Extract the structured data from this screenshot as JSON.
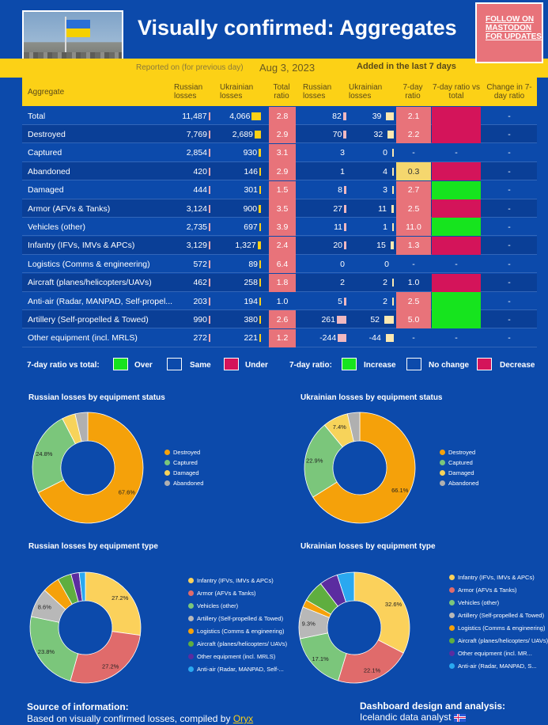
{
  "header": {
    "title": "Visually confirmed:  Aggregates",
    "follow_lines": [
      "FOLLOW ON",
      "MASTODON",
      "FOR UPDATES"
    ],
    "reported_label": "Reported on (for previous day)",
    "date": "Aug 3, 2023",
    "added_label": "Added in the last 7 days"
  },
  "table": {
    "headers": [
      "Aggregate",
      "Russian losses",
      "Ukrainian losses",
      "Total ratio",
      "Russian losses",
      "Ukrainian losses",
      "7-day ratio",
      "7-day ratio vs total",
      "Change in 7-day ratio"
    ],
    "rows": [
      {
        "name": "Total",
        "ru": "11,487",
        "ua": "4,066",
        "ratio": "2.8",
        "ru7": "82",
        "ua7": "39",
        "r7": "2.1",
        "vs": "under",
        "chg": "-",
        "r7c": "decrease",
        "uab": 0.72,
        "rub": 0.12,
        "ru7b": 0.35,
        "ua7b": 0.8
      },
      {
        "name": "Destroyed",
        "ru": "7,769",
        "ua": "2,689",
        "ratio": "2.9",
        "ru7": "70",
        "ua7": "32",
        "r7": "2.2",
        "vs": "under",
        "chg": "-",
        "r7c": "decrease",
        "uab": 0.5,
        "rub": 0.08,
        "ru7b": 0.3,
        "ua7b": 0.65
      },
      {
        "name": "Captured",
        "ru": "2,854",
        "ua": "930",
        "ratio": "3.1",
        "ru7": "3",
        "ua7": "0",
        "r7": "-",
        "vs": "none",
        "chg": "-",
        "r7c": "none",
        "uab": 0.18,
        "rub": 0.03,
        "ru7b": 0.0,
        "ua7b": 0.05
      },
      {
        "name": "Abandoned",
        "ru": "420",
        "ua": "146",
        "ratio": "2.9",
        "ru7": "1",
        "ua7": "4",
        "r7": "0.3",
        "vs": "under",
        "chg": "-",
        "r7c": "yellow",
        "uab": 0.03,
        "rub": 0.01,
        "ru7b": 0.0,
        "ua7b": 0.1
      },
      {
        "name": "Damaged",
        "ru": "444",
        "ua": "301",
        "ratio": "1.5",
        "ru7": "8",
        "ua7": "3",
        "r7": "2.7",
        "vs": "over",
        "chg": "-",
        "r7c": "decrease",
        "uab": 0.06,
        "rub": 0.01,
        "ru7b": 0.03,
        "ua7b": 0.08
      },
      {
        "name": "Armor (AFVs & Tanks)",
        "ru": "3,124",
        "ua": "900",
        "ratio": "3.5",
        "ru7": "27",
        "ua7": "11",
        "r7": "2.5",
        "vs": "under",
        "chg": "-",
        "r7c": "decrease",
        "uab": 0.18,
        "rub": 0.03,
        "ru7b": 0.1,
        "ua7b": 0.25
      },
      {
        "name": "Vehicles (other)",
        "ru": "2,735",
        "ua": "697",
        "ratio": "3.9",
        "ru7": "11",
        "ua7": "1",
        "r7": "11.0",
        "vs": "over",
        "chg": "-",
        "r7c": "decrease",
        "uab": 0.14,
        "rub": 0.03,
        "ru7b": 0.04,
        "ua7b": 0.03
      },
      {
        "name": "Infantry (IFVs, IMVs & APCs)",
        "ru": "3,129",
        "ua": "1,327",
        "ratio": "2.4",
        "ru7": "20",
        "ua7": "15",
        "r7": "1.3",
        "vs": "under",
        "chg": "-",
        "r7c": "decrease",
        "uab": 0.27,
        "rub": 0.03,
        "ru7b": 0.08,
        "ua7b": 0.35
      },
      {
        "name": "Logistics (Comms & engineering)",
        "ru": "572",
        "ua": "89",
        "ratio": "6.4",
        "ru7": "0",
        "ua7": "0",
        "r7": "-",
        "vs": "none",
        "chg": "-",
        "r7c": "none",
        "uab": 0.02,
        "rub": 0.01,
        "ru7b": 0.0,
        "ua7b": 0.0
      },
      {
        "name": "Aircraft (planes/helicopters/UAVs)",
        "ru": "462",
        "ua": "258",
        "ratio": "1.8",
        "ru7": "2",
        "ua7": "2",
        "r7": "1.0",
        "vs": "under",
        "chg": "-",
        "r7c": "none",
        "uab": 0.05,
        "rub": 0.01,
        "ru7b": 0.0,
        "ua7b": 0.05
      },
      {
        "name": "Anti-air (Radar, MANPAD, Self-propel...",
        "ru": "203",
        "ua": "194",
        "ratio": "1.0",
        "ru7": "5",
        "ua7": "2",
        "r7": "2.5",
        "vs": "over",
        "chg": "-",
        "r7c": "decrease",
        "uab": 0.04,
        "rub": 0.01,
        "ru7b": 0.02,
        "ua7b": 0.05
      },
      {
        "name": "Artillery (Self-propelled & Towed)",
        "ru": "990",
        "ua": "380",
        "ratio": "2.6",
        "ru7": "261",
        "ua7": "52",
        "r7": "5.0",
        "vs": "over",
        "chg": "-",
        "r7c": "decrease",
        "uab": 0.08,
        "rub": 0.02,
        "ru7b": 1.0,
        "ua7b": 1.0
      },
      {
        "name": "Other equipment (incl. MRLS)",
        "ru": "272",
        "ua": "221",
        "ratio": "1.2",
        "ru7": "-244",
        "ua7": "-44",
        "r7": "-",
        "vs": "none",
        "chg": "-",
        "r7c": "none",
        "uab": 0.05,
        "rub": 0.01,
        "ru7b": 0.9,
        "ua7b": 0.85
      }
    ]
  },
  "legend": {
    "label1": "7-day ratio vs total:",
    "over": "Over",
    "same": "Same",
    "under": "Under",
    "label2": "7-day ratio:",
    "increase": "Increase",
    "nochange": "No change",
    "decrease": "Decrease"
  },
  "colors": {
    "bg": "#0c4aab",
    "yellow": "#fcd116",
    "green": "#16e41e",
    "magenta": "#d4145a",
    "salmon": "#e8737a",
    "pale_yellow": "#f5d76e"
  },
  "chart_data": [
    {
      "type": "pie",
      "title": "Russian losses by equipment status",
      "categories": [
        "Destroyed",
        "Captured",
        "Damaged",
        "Abandoned"
      ],
      "values": [
        67.6,
        24.8,
        3.9,
        3.7
      ],
      "labels": [
        "67.6%",
        "24.8%",
        "",
        ""
      ],
      "colors": [
        "#f5a10a",
        "#7bc67b",
        "#f7d35a",
        "#b0b0b0"
      ]
    },
    {
      "type": "pie",
      "title": "Ukrainian losses by equipment status",
      "categories": [
        "Destroyed",
        "Captured",
        "Damaged",
        "Abandoned"
      ],
      "values": [
        66.1,
        22.9,
        7.4,
        3.6
      ],
      "labels": [
        "66.1%",
        "22.9%",
        "7.4%",
        ""
      ],
      "colors": [
        "#f5a10a",
        "#7bc67b",
        "#f7d35a",
        "#b0b0b0"
      ]
    },
    {
      "type": "pie",
      "title": "Russian losses by equipment type",
      "categories": [
        "Infantry (IFVs, IMVs & APCs)",
        "Armor (AFVs & Tanks)",
        "Vehicles (other)",
        "Artillery (Self-propelled & Towed)",
        "Logistics (Comms & engineering)",
        "Aircraft (planes/helicopters/ UAVs)",
        "Other equipment (incl. MRLS)",
        "Anti-air (Radar, MANPAD, Self-..."
      ],
      "values": [
        27.2,
        27.2,
        23.8,
        8.6,
        5.0,
        4.0,
        2.4,
        1.8
      ],
      "labels": [
        "27.2%",
        "27.2%",
        "23.8%",
        "8.6%",
        "",
        "",
        "",
        ""
      ],
      "colors": [
        "#fbd15b",
        "#e06b6b",
        "#7bc67b",
        "#b8b8b8",
        "#f5a10a",
        "#5fae3f",
        "#5b2ca0",
        "#2aa8f0"
      ]
    },
    {
      "type": "pie",
      "title": "Ukrainian losses by equipment type",
      "categories": [
        "Infantry (IFVs, IMVs & APCs)",
        "Armor (AFVs & Tanks)",
        "Vehicles (other)",
        "Artillery (Self-propelled & Towed)",
        "Logistics (Comms & engineering)",
        "Aircraft (planes/helicopters/ UAVs)",
        "Other equipment (incl. MR...",
        "Anti-air (Radar, MANPAD, S..."
      ],
      "values": [
        32.6,
        22.1,
        17.1,
        9.3,
        2.2,
        6.3,
        5.4,
        5.0
      ],
      "labels": [
        "32.6%",
        "22.1%",
        "17.1%",
        "9.3%",
        "",
        "",
        "",
        ""
      ],
      "colors": [
        "#fbd15b",
        "#e06b6b",
        "#7bc67b",
        "#b8b8b8",
        "#f5a10a",
        "#5fae3f",
        "#5b2ca0",
        "#2aa8f0"
      ]
    }
  ],
  "footer": {
    "source_title": "Source of information:",
    "source_text": "Based on visually confirmed losses, compiled by",
    "source_link": "Oryx",
    "design_title": "Dashboard design and analysis:",
    "design_text": "Icelandic data analyst"
  }
}
